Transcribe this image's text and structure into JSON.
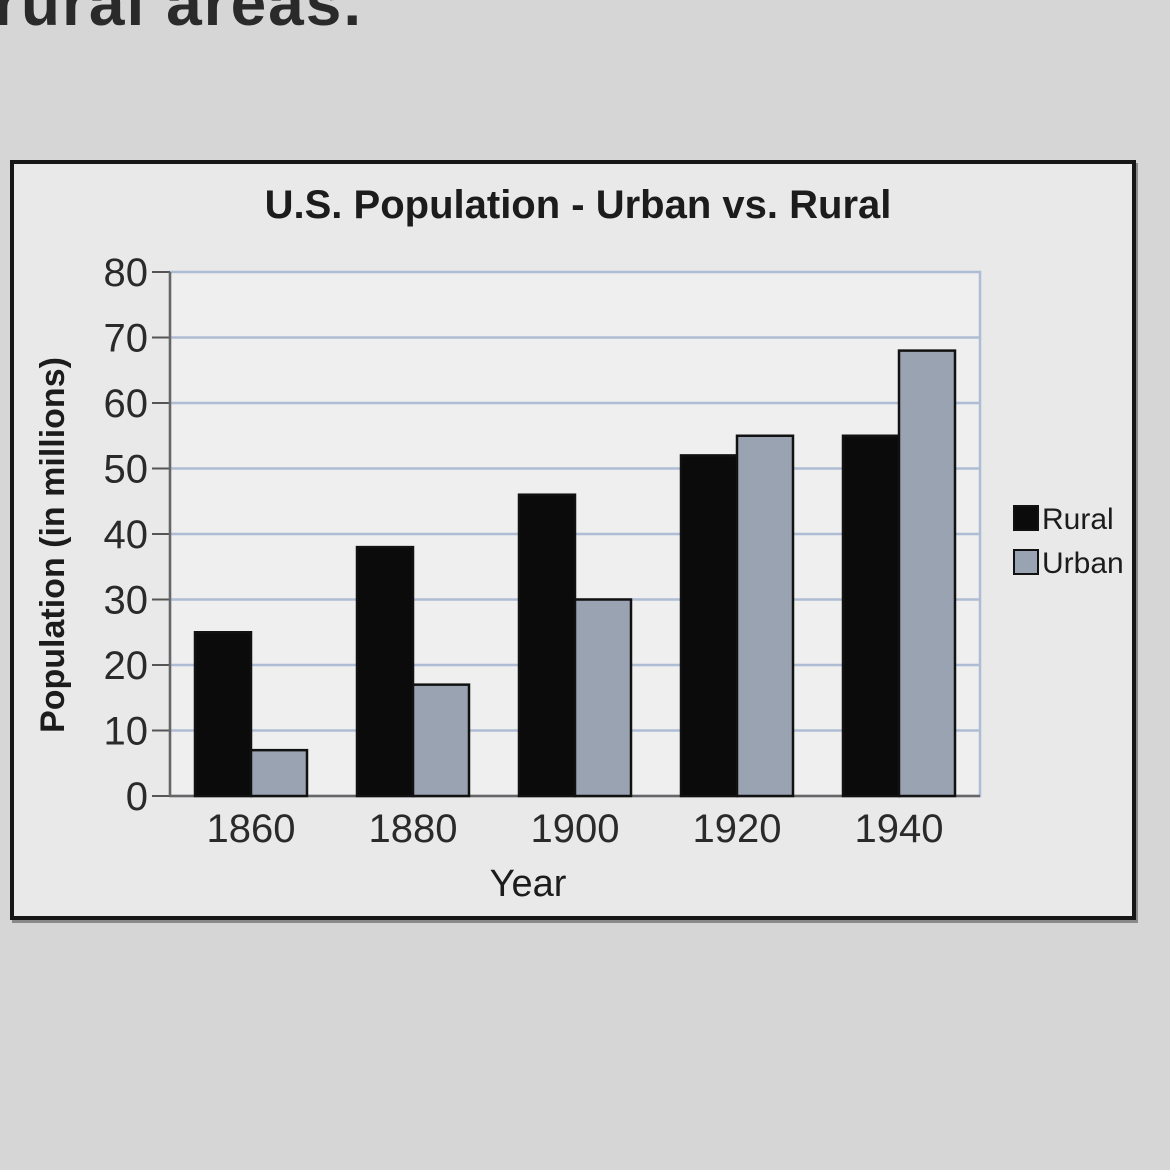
{
  "page": {
    "cutoff_text": "rural areas."
  },
  "chart_data": {
    "type": "bar",
    "title": "U.S. Population - Urban vs. Rural",
    "xlabel": "Year",
    "ylabel": "Population (in millions)",
    "categories": [
      "1860",
      "1880",
      "1900",
      "1920",
      "1940"
    ],
    "series": [
      {
        "name": "Rural",
        "values": [
          25,
          38,
          46,
          52,
          55
        ],
        "color": "#0b0b0b"
      },
      {
        "name": "Urban",
        "values": [
          7,
          17,
          30,
          55,
          68
        ],
        "color": "#9aa3b2"
      }
    ],
    "ylim": [
      0,
      80
    ],
    "yticks": [
      0,
      10,
      20,
      30,
      40,
      50,
      60,
      70,
      80
    ],
    "grid": true,
    "legend": "right"
  }
}
